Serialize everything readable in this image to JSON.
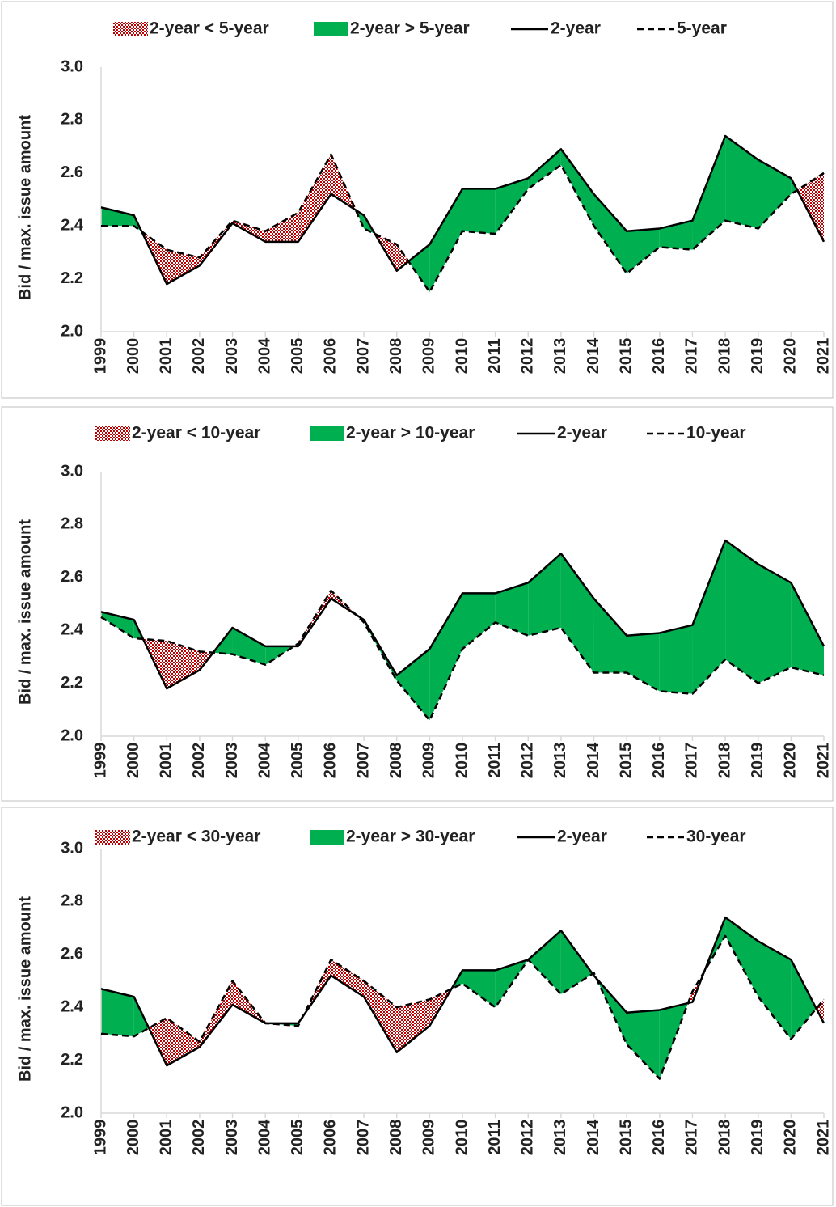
{
  "chart_data": [
    {
      "type": "line",
      "y_label": "Bid / max. issue amount",
      "categories": [
        "1999",
        "2000",
        "2001",
        "2002",
        "2003",
        "2004",
        "2005",
        "2006",
        "2007",
        "2008",
        "2009",
        "2010",
        "2011",
        "2012",
        "2013",
        "2014",
        "2015",
        "2016",
        "2017",
        "2018",
        "2019",
        "2020",
        "2021"
      ],
      "fills": [
        {
          "name": "2-year < 5-year",
          "color": "#c00000",
          "pattern": "dots"
        },
        {
          "name": "2-year > 5-year",
          "color": "#00b050"
        }
      ],
      "series": [
        {
          "name": "2-year",
          "color": "#000000",
          "style": "solid",
          "values": [
            2.47,
            2.44,
            2.18,
            2.25,
            2.41,
            2.34,
            2.34,
            2.52,
            2.44,
            2.23,
            2.33,
            2.54,
            2.54,
            2.58,
            2.69,
            2.52,
            2.38,
            2.39,
            2.42,
            2.74,
            2.65,
            2.58,
            2.34
          ]
        },
        {
          "name": "5-year",
          "color": "#000000",
          "style": "dashed",
          "values": [
            2.4,
            2.4,
            2.31,
            2.28,
            2.42,
            2.38,
            2.45,
            2.67,
            2.39,
            2.33,
            2.15,
            2.38,
            2.37,
            2.54,
            2.63,
            2.4,
            2.22,
            2.32,
            2.31,
            2.42,
            2.39,
            2.52,
            2.6
          ]
        }
      ],
      "ylim": [
        2,
        3
      ],
      "yticks": [
        {
          "value": 2,
          "label": "2.0"
        },
        2.2,
        2.4,
        2.6,
        2.8,
        {
          "value": 3,
          "label": "3.0"
        }
      ]
    },
    {
      "type": "line",
      "y_label": "Bid / max. issue amount",
      "categories": [
        "1999",
        "2000",
        "2001",
        "2002",
        "2003",
        "2004",
        "2005",
        "2006",
        "2007",
        "2008",
        "2009",
        "2010",
        "2011",
        "2012",
        "2013",
        "2014",
        "2015",
        "2016",
        "2017",
        "2018",
        "2019",
        "2020",
        "2021"
      ],
      "fills": [
        {
          "name": "2-year < 10-year",
          "color": "#c00000",
          "pattern": "dots"
        },
        {
          "name": "2-year > 10-year",
          "color": "#00b050"
        }
      ],
      "series": [
        {
          "name": "2-year",
          "color": "#000000",
          "style": "solid",
          "values": [
            2.47,
            2.44,
            2.18,
            2.25,
            2.41,
            2.34,
            2.34,
            2.52,
            2.44,
            2.23,
            2.33,
            2.54,
            2.54,
            2.58,
            2.69,
            2.52,
            2.38,
            2.39,
            2.42,
            2.74,
            2.65,
            2.58,
            2.34
          ]
        },
        {
          "name": "10-year",
          "color": "#000000",
          "style": "dashed",
          "values": [
            2.45,
            2.37,
            2.36,
            2.32,
            2.31,
            2.27,
            2.35,
            2.55,
            2.43,
            2.21,
            2.06,
            2.33,
            2.43,
            2.38,
            2.41,
            2.24,
            2.24,
            2.17,
            2.16,
            2.29,
            2.2,
            2.26,
            2.23
          ]
        }
      ],
      "ylim": [
        2,
        3
      ],
      "yticks": [
        {
          "value": 2,
          "label": "2.0"
        },
        2.2,
        2.4,
        2.6,
        2.8,
        {
          "value": 3,
          "label": "3.0"
        }
      ]
    },
    {
      "type": "line",
      "y_label": "Bid / max. issue amount",
      "categories": [
        "1999",
        "2000",
        "2001",
        "2002",
        "2003",
        "2004",
        "2005",
        "2006",
        "2007",
        "2008",
        "2009",
        "2010",
        "2011",
        "2012",
        "2013",
        "2014",
        "2015",
        "2016",
        "2017",
        "2018",
        "2019",
        "2020",
        "2021"
      ],
      "fills": [
        {
          "name": "2-year < 30-year",
          "color": "#c00000",
          "pattern": "dots"
        },
        {
          "name": "2-year > 30-year",
          "color": "#00b050"
        }
      ],
      "series": [
        {
          "name": "2-year",
          "color": "#000000",
          "style": "solid",
          "values": [
            2.47,
            2.44,
            2.18,
            2.25,
            2.41,
            2.34,
            2.34,
            2.52,
            2.44,
            2.23,
            2.33,
            2.54,
            2.54,
            2.58,
            2.69,
            2.52,
            2.38,
            2.39,
            2.42,
            2.74,
            2.65,
            2.58,
            2.34
          ]
        },
        {
          "name": "30-year",
          "color": "#000000",
          "style": "dashed",
          "values": [
            2.3,
            2.29,
            2.36,
            2.27,
            2.5,
            2.34,
            2.33,
            2.58,
            2.5,
            2.4,
            2.43,
            2.49,
            2.4,
            2.58,
            2.45,
            2.53,
            2.26,
            2.13,
            2.46,
            2.67,
            2.44,
            2.28,
            2.43
          ]
        }
      ],
      "ylim": [
        2,
        3
      ],
      "yticks": [
        {
          "value": 2,
          "label": "2.0"
        },
        2.2,
        2.4,
        2.6,
        2.8,
        {
          "value": 3,
          "label": "3.0"
        }
      ]
    }
  ]
}
